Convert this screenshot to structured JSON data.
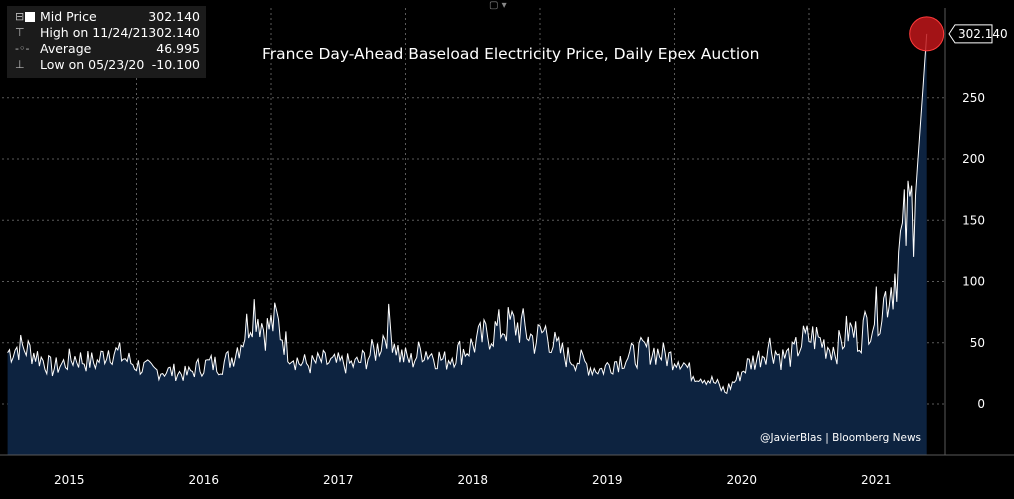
{
  "legend": {
    "series_label": "Mid Price",
    "series_value": "302.140",
    "high_label": "High on 11/24/21",
    "high_value": "302.140",
    "avg_label": "Average",
    "avg_value": "46.995",
    "low_label": "Low on 05/23/20",
    "low_value": "-10.100"
  },
  "toolbar": {
    "chart_type_icon": "line-chart-icon"
  },
  "credit": "@JavierBlas | Bloomberg News",
  "colors": {
    "background": "#000000",
    "fill": "#0d2340",
    "line": "#ffffff",
    "grid": "#5a5a5a",
    "marker": "#c0161a",
    "legend_bg": "#1b1b1b"
  },
  "chart_data": {
    "type": "area",
    "title": "France Day-Ahead Baseload Electricity Price, Daily Epex Auction",
    "x_labels": [
      "2015",
      "2016",
      "2017",
      "2018",
      "2019",
      "2020",
      "2021"
    ],
    "y_ticks": [
      0,
      50,
      100,
      150,
      200,
      250
    ],
    "ylim": [
      -40,
      320
    ],
    "last_value_label": "302.140",
    "grid": true,
    "legend_position": "top-left",
    "series": [
      {
        "name": "Mid Price",
        "x": [
          "2015-01",
          "2015-02",
          "2015-03",
          "2015-04",
          "2015-05",
          "2015-06",
          "2015-07",
          "2015-08",
          "2015-09",
          "2015-10",
          "2015-11",
          "2015-12",
          "2016-01",
          "2016-02",
          "2016-03",
          "2016-04",
          "2016-05",
          "2016-06",
          "2016-07",
          "2016-08",
          "2016-09",
          "2016-10",
          "2016-11",
          "2016-12",
          "2017-01",
          "2017-02",
          "2017-03",
          "2017-04",
          "2017-05",
          "2017-06",
          "2017-07",
          "2017-08",
          "2017-09",
          "2017-10",
          "2017-11",
          "2017-12",
          "2018-01",
          "2018-02",
          "2018-03",
          "2018-04",
          "2018-05",
          "2018-06",
          "2018-07",
          "2018-08",
          "2018-09",
          "2018-10",
          "2018-11",
          "2018-12",
          "2019-01",
          "2019-02",
          "2019-03",
          "2019-04",
          "2019-05",
          "2019-06",
          "2019-07",
          "2019-08",
          "2019-09",
          "2019-10",
          "2019-11",
          "2019-12",
          "2020-01",
          "2020-02",
          "2020-03",
          "2020-04",
          "2020-05",
          "2020-06",
          "2020-07",
          "2020-08",
          "2020-09",
          "2020-10",
          "2020-11",
          "2020-12",
          "2021-01",
          "2021-02",
          "2021-03",
          "2021-04",
          "2021-05",
          "2021-06",
          "2021-07",
          "2021-08",
          "2021-09",
          "2021-10",
          "2021-11"
        ],
        "values": [
          42,
          47,
          44,
          37,
          29,
          33,
          38,
          35,
          34,
          45,
          40,
          34,
          30,
          27,
          27,
          26,
          24,
          30,
          33,
          32,
          38,
          55,
          80,
          60,
          68,
          45,
          34,
          32,
          35,
          33,
          33,
          32,
          38,
          45,
          65,
          40,
          35,
          45,
          40,
          35,
          42,
          45,
          52,
          58,
          62,
          65,
          62,
          52,
          60,
          45,
          38,
          36,
          30,
          28,
          34,
          38,
          40,
          45,
          42,
          38,
          38,
          25,
          22,
          18,
          10,
          20,
          32,
          38,
          48,
          38,
          40,
          52,
          55,
          48,
          45,
          60,
          55,
          70,
          80,
          100,
          140,
          170,
          302.14
        ]
      }
    ]
  }
}
